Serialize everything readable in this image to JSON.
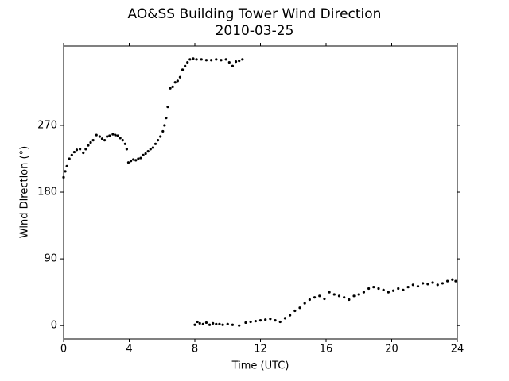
{
  "chart_data": {
    "type": "scatter",
    "title": "AO&SS Building Tower Wind Direction",
    "subtitle": "2010-03-25",
    "x_label": "Time (UTC)",
    "y_label": "Wind Direction (°)",
    "xlim": [
      0,
      24
    ],
    "ylim": [
      -18,
      377
    ],
    "xticks": [
      0,
      4,
      8,
      12,
      16,
      20,
      24
    ],
    "yticks": [
      0,
      90,
      180,
      270
    ],
    "series": [
      {
        "name": "Wind Direction",
        "color": "#000000",
        "x": [
          0,
          0.1,
          0.2,
          0.35,
          0.5,
          0.65,
          0.8,
          1.0,
          1.2,
          1.35,
          1.5,
          1.65,
          1.8,
          2.0,
          2.2,
          2.35,
          2.5,
          2.65,
          2.8,
          3.0,
          3.15,
          3.3,
          3.45,
          3.6,
          3.75,
          3.85,
          3.95,
          4.1,
          4.25,
          4.4,
          4.55,
          4.7,
          4.85,
          5.0,
          5.15,
          5.3,
          5.45,
          5.6,
          5.75,
          5.9,
          6.05,
          6.15,
          6.25,
          6.35,
          6.5,
          6.65,
          6.8,
          6.95,
          7.1,
          7.25,
          7.4,
          7.55,
          7.7,
          7.9,
          8.1,
          8.4,
          8.7,
          9.0,
          9.3,
          9.6,
          9.9,
          10.1,
          10.3,
          10.5,
          10.7,
          10.9,
          8.0,
          8.15,
          8.3,
          8.5,
          8.7,
          8.9,
          9.1,
          9.3,
          9.5,
          9.7,
          10.0,
          10.3,
          10.7,
          11.1,
          11.4,
          11.7,
          12.0,
          12.3,
          12.6,
          12.9,
          13.2,
          13.5,
          13.8,
          14.1,
          14.4,
          14.7,
          15.0,
          15.3,
          15.6,
          15.9,
          16.2,
          16.5,
          16.8,
          17.1,
          17.4,
          17.7,
          18.0,
          18.3,
          18.6,
          18.9,
          19.2,
          19.5,
          19.8,
          20.1,
          20.4,
          20.7,
          21.0,
          21.3,
          21.6,
          21.9,
          22.2,
          22.5,
          22.8,
          23.1,
          23.4,
          23.7,
          23.9
        ],
        "values": [
          200,
          208,
          215,
          225,
          230,
          234,
          237,
          238,
          233,
          238,
          243,
          247,
          250,
          257,
          255,
          252,
          250,
          255,
          256,
          258,
          257,
          256,
          253,
          250,
          245,
          238,
          220,
          222,
          224,
          223,
          225,
          226,
          230,
          232,
          235,
          238,
          240,
          245,
          250,
          255,
          262,
          270,
          280,
          295,
          320,
          322,
          328,
          330,
          335,
          345,
          350,
          355,
          359,
          360,
          359,
          359,
          358,
          358,
          359,
          358,
          359,
          355,
          350,
          356,
          357,
          359,
          1,
          5,
          3,
          2,
          4,
          1,
          3,
          2,
          2,
          1,
          2,
          1,
          0,
          4,
          5,
          6,
          7,
          8,
          9,
          7,
          5,
          10,
          14,
          20,
          24,
          30,
          35,
          38,
          40,
          36,
          45,
          42,
          40,
          38,
          35,
          40,
          42,
          45,
          50,
          52,
          50,
          48,
          45,
          47,
          50,
          48,
          52,
          55,
          53,
          57,
          56,
          58,
          55,
          57,
          60,
          62,
          60
        ]
      }
    ]
  }
}
